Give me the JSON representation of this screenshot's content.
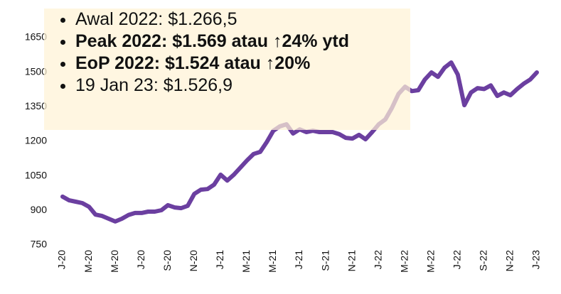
{
  "chart_data": {
    "type": "line",
    "categories": [
      "J-20",
      null,
      null,
      null,
      "M-20",
      null,
      null,
      null,
      "M-20",
      null,
      null,
      null,
      "J-20",
      null,
      null,
      null,
      "S-20",
      null,
      null,
      null,
      "N-20",
      null,
      null,
      null,
      "J-21",
      null,
      null,
      null,
      "M-21",
      null,
      null,
      null,
      "M-21",
      null,
      null,
      null,
      "J-21",
      null,
      null,
      null,
      "S-21",
      null,
      null,
      null,
      "N-21",
      null,
      null,
      null,
      "J-22",
      null,
      null,
      null,
      "M-22",
      null,
      null,
      null,
      "M-22",
      null,
      null,
      null,
      "J-22",
      null,
      null,
      null,
      "S-22",
      null,
      null,
      null,
      "N-22",
      null,
      null,
      null,
      "J-23"
    ],
    "series": [
      {
        "color": "#6b3fa0",
        "values": [
          960,
          944,
          938,
          932,
          916,
          882,
          876,
          864,
          852,
          864,
          880,
          889,
          889,
          895,
          895,
          901,
          923,
          913,
          910,
          920,
          972,
          990,
          993,
          1012,
          1055,
          1030,
          1055,
          1086,
          1117,
          1145,
          1154,
          1197,
          1246,
          1265,
          1274,
          1234,
          1252,
          1240,
          1246,
          1240,
          1240,
          1240,
          1231,
          1215,
          1212,
          1228,
          1209,
          1240,
          1274,
          1295,
          1345,
          1406,
          1437,
          1418,
          1422,
          1468,
          1499,
          1480,
          1520,
          1542,
          1490,
          1357,
          1412,
          1431,
          1427,
          1443,
          1397,
          1412,
          1400,
          1427,
          1450,
          1468,
          1499
        ]
      }
    ],
    "ylim": [
      750,
      1650
    ],
    "yticks": [
      750,
      900,
      1050,
      1200,
      1350,
      1500,
      1650
    ],
    "grid": false,
    "annotations": [
      {
        "text": "Awal 2022: $1.266,5",
        "bold": false
      },
      {
        "text": "Peak 2022: $1.569 atau ↑24% ytd",
        "bold": true
      },
      {
        "text": "EoP 2022: $1.524 atau ↑20%",
        "bold": true
      },
      {
        "text": "19 Jan 23: $1.526,9",
        "bold": false
      }
    ]
  }
}
